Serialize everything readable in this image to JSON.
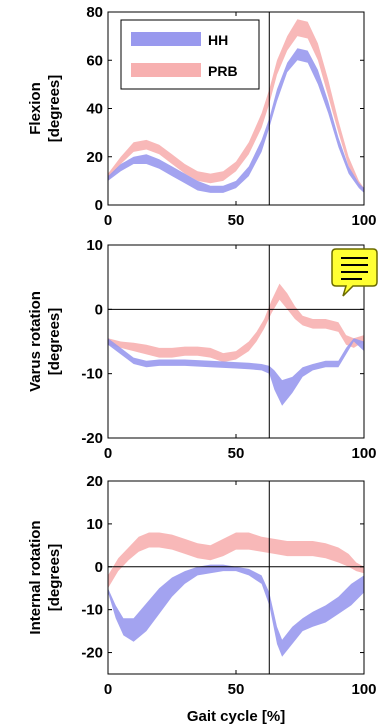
{
  "colors": {
    "hh": "#9999ee",
    "prb": "#f7b0b0",
    "axis": "#000000",
    "note_fill": "#ffff33",
    "note_stroke": "#6b6b00"
  },
  "note_icon": "comment-note-icon",
  "legend": [
    {
      "label": "HH",
      "key": "hh"
    },
    {
      "label": "PRB",
      "key": "prb"
    }
  ],
  "x_axis_label": "Gait cycle [%]",
  "chart_data": [
    {
      "type": "area",
      "ylabel_lines": [
        "Flexion",
        "[degrees]"
      ],
      "xlim": [
        0,
        100
      ],
      "ylim": [
        0,
        80
      ],
      "xticks": [
        0,
        50,
        100
      ],
      "yticks": [
        0,
        20,
        40,
        60,
        80
      ],
      "vline_x": 63,
      "zero_line": false,
      "series": [
        {
          "name": "HH",
          "key": "hh",
          "x": [
            0,
            5,
            10,
            15,
            20,
            25,
            30,
            35,
            40,
            45,
            50,
            55,
            60,
            63,
            66,
            70,
            74,
            78,
            82,
            86,
            90,
            94,
            98,
            100
          ],
          "lower": [
            10,
            14,
            17,
            17,
            15,
            12,
            9,
            6,
            5,
            5,
            7,
            12,
            22,
            32,
            43,
            55,
            60,
            59,
            50,
            38,
            24,
            13,
            7,
            5
          ],
          "upper": [
            12,
            17,
            20,
            21,
            19,
            16,
            13,
            10,
            8,
            8,
            10,
            16,
            27,
            36,
            48,
            59,
            65,
            64,
            56,
            43,
            28,
            16,
            9,
            7
          ]
        },
        {
          "name": "PRB",
          "key": "prb",
          "x": [
            0,
            5,
            10,
            15,
            20,
            25,
            30,
            35,
            40,
            45,
            50,
            55,
            60,
            63,
            66,
            70,
            74,
            78,
            82,
            86,
            90,
            94,
            98,
            100
          ],
          "lower": [
            10,
            17,
            22,
            23,
            21,
            17,
            13,
            10,
            9,
            10,
            14,
            21,
            32,
            42,
            54,
            64,
            70,
            69,
            60,
            45,
            30,
            16,
            8,
            5
          ],
          "upper": [
            13,
            20,
            26,
            27,
            25,
            21,
            17,
            14,
            13,
            14,
            18,
            26,
            38,
            48,
            60,
            70,
            77,
            76,
            67,
            52,
            35,
            20,
            10,
            7
          ]
        }
      ]
    },
    {
      "type": "area",
      "ylabel_lines": [
        "Varus rotation",
        "[degrees]"
      ],
      "xlim": [
        0,
        100
      ],
      "ylim": [
        -20,
        10
      ],
      "xticks": [
        0,
        50,
        100
      ],
      "yticks": [
        -20,
        -10,
        0,
        10
      ],
      "vline_x": 63,
      "zero_line": true,
      "series": [
        {
          "name": "HH",
          "key": "hh",
          "x": [
            0,
            5,
            10,
            15,
            20,
            30,
            40,
            50,
            55,
            60,
            63,
            65,
            68,
            72,
            76,
            80,
            85,
            90,
            93,
            96,
            100
          ],
          "lower": [
            -5.5,
            -7,
            -8.5,
            -9,
            -8.8,
            -8.8,
            -9,
            -9.2,
            -9.3,
            -9.5,
            -10,
            -12.5,
            -15,
            -13,
            -10.5,
            -9.5,
            -9,
            -9,
            -7,
            -5,
            -6.5
          ],
          "upper": [
            -4.5,
            -6,
            -7.5,
            -8,
            -7.8,
            -7.8,
            -8,
            -8.2,
            -8.3,
            -8.5,
            -8.8,
            -9.5,
            -11,
            -10.5,
            -9,
            -8.5,
            -8,
            -8,
            -6,
            -4.5,
            -5
          ]
        },
        {
          "name": "PRB",
          "key": "prb",
          "x": [
            0,
            5,
            10,
            15,
            20,
            25,
            30,
            35,
            40,
            45,
            50,
            55,
            58,
            61,
            64,
            67,
            70,
            73,
            76,
            80,
            85,
            90,
            93,
            96,
            100
          ],
          "lower": [
            -5.5,
            -6,
            -6.5,
            -7,
            -7.5,
            -7.5,
            -7.2,
            -7.2,
            -7.5,
            -8.2,
            -7.8,
            -6.5,
            -5,
            -3,
            -0.5,
            1.5,
            0,
            -1.5,
            -2.5,
            -3,
            -3,
            -3.5,
            -5.5,
            -6,
            -5
          ],
          "upper": [
            -4.5,
            -5,
            -5.2,
            -5.5,
            -6,
            -6,
            -5.8,
            -5.8,
            -6,
            -6.8,
            -6.5,
            -5,
            -3.5,
            -1.5,
            1.5,
            4,
            2.5,
            0.5,
            -1,
            -1.5,
            -1.5,
            -2,
            -4,
            -4.5,
            -4
          ]
        }
      ]
    },
    {
      "type": "area",
      "ylabel_lines": [
        "Internal rotation",
        "[degrees]"
      ],
      "xlim": [
        0,
        100
      ],
      "ylim": [
        -25,
        20
      ],
      "xticks": [
        0,
        50,
        100
      ],
      "yticks": [
        -20,
        -10,
        0,
        10,
        20
      ],
      "vline_x": 63,
      "zero_line": true,
      "series": [
        {
          "name": "HH",
          "key": "hh",
          "x": [
            0,
            3,
            6,
            10,
            15,
            20,
            25,
            30,
            35,
            40,
            45,
            50,
            55,
            60,
            63,
            66,
            68,
            72,
            76,
            80,
            85,
            90,
            95,
            100
          ],
          "lower": [
            -6,
            -12,
            -16,
            -17.5,
            -15,
            -11,
            -7,
            -4,
            -2,
            -1.5,
            -1,
            -1,
            -2,
            -4,
            -9,
            -18,
            -21,
            -18,
            -15,
            -14,
            -13,
            -11,
            -9,
            -6
          ],
          "upper": [
            -5,
            -9,
            -12,
            -12,
            -8.5,
            -5,
            -2.5,
            -1,
            0,
            0.5,
            0.5,
            0,
            -0.5,
            -2,
            -6,
            -14,
            -17,
            -14,
            -12,
            -10.5,
            -9,
            -7,
            -4,
            -2
          ]
        },
        {
          "name": "PRB",
          "key": "prb",
          "x": [
            0,
            4,
            8,
            12,
            16,
            20,
            25,
            30,
            35,
            40,
            45,
            50,
            55,
            60,
            65,
            70,
            75,
            80,
            85,
            90,
            94,
            97,
            100
          ],
          "lower": [
            -5,
            -1,
            1.5,
            3.5,
            4.5,
            4.5,
            4,
            3,
            2,
            1.5,
            2.5,
            4,
            4,
            3.5,
            3,
            2.5,
            2.5,
            2.5,
            2,
            1,
            0,
            -1,
            -1.5
          ],
          "upper": [
            -2,
            2,
            4.5,
            7,
            8,
            8,
            7.5,
            6.5,
            5.5,
            5,
            6.5,
            8,
            8,
            7,
            6.5,
            6,
            6,
            6,
            5.5,
            4.5,
            3,
            1,
            0
          ]
        }
      ]
    }
  ]
}
